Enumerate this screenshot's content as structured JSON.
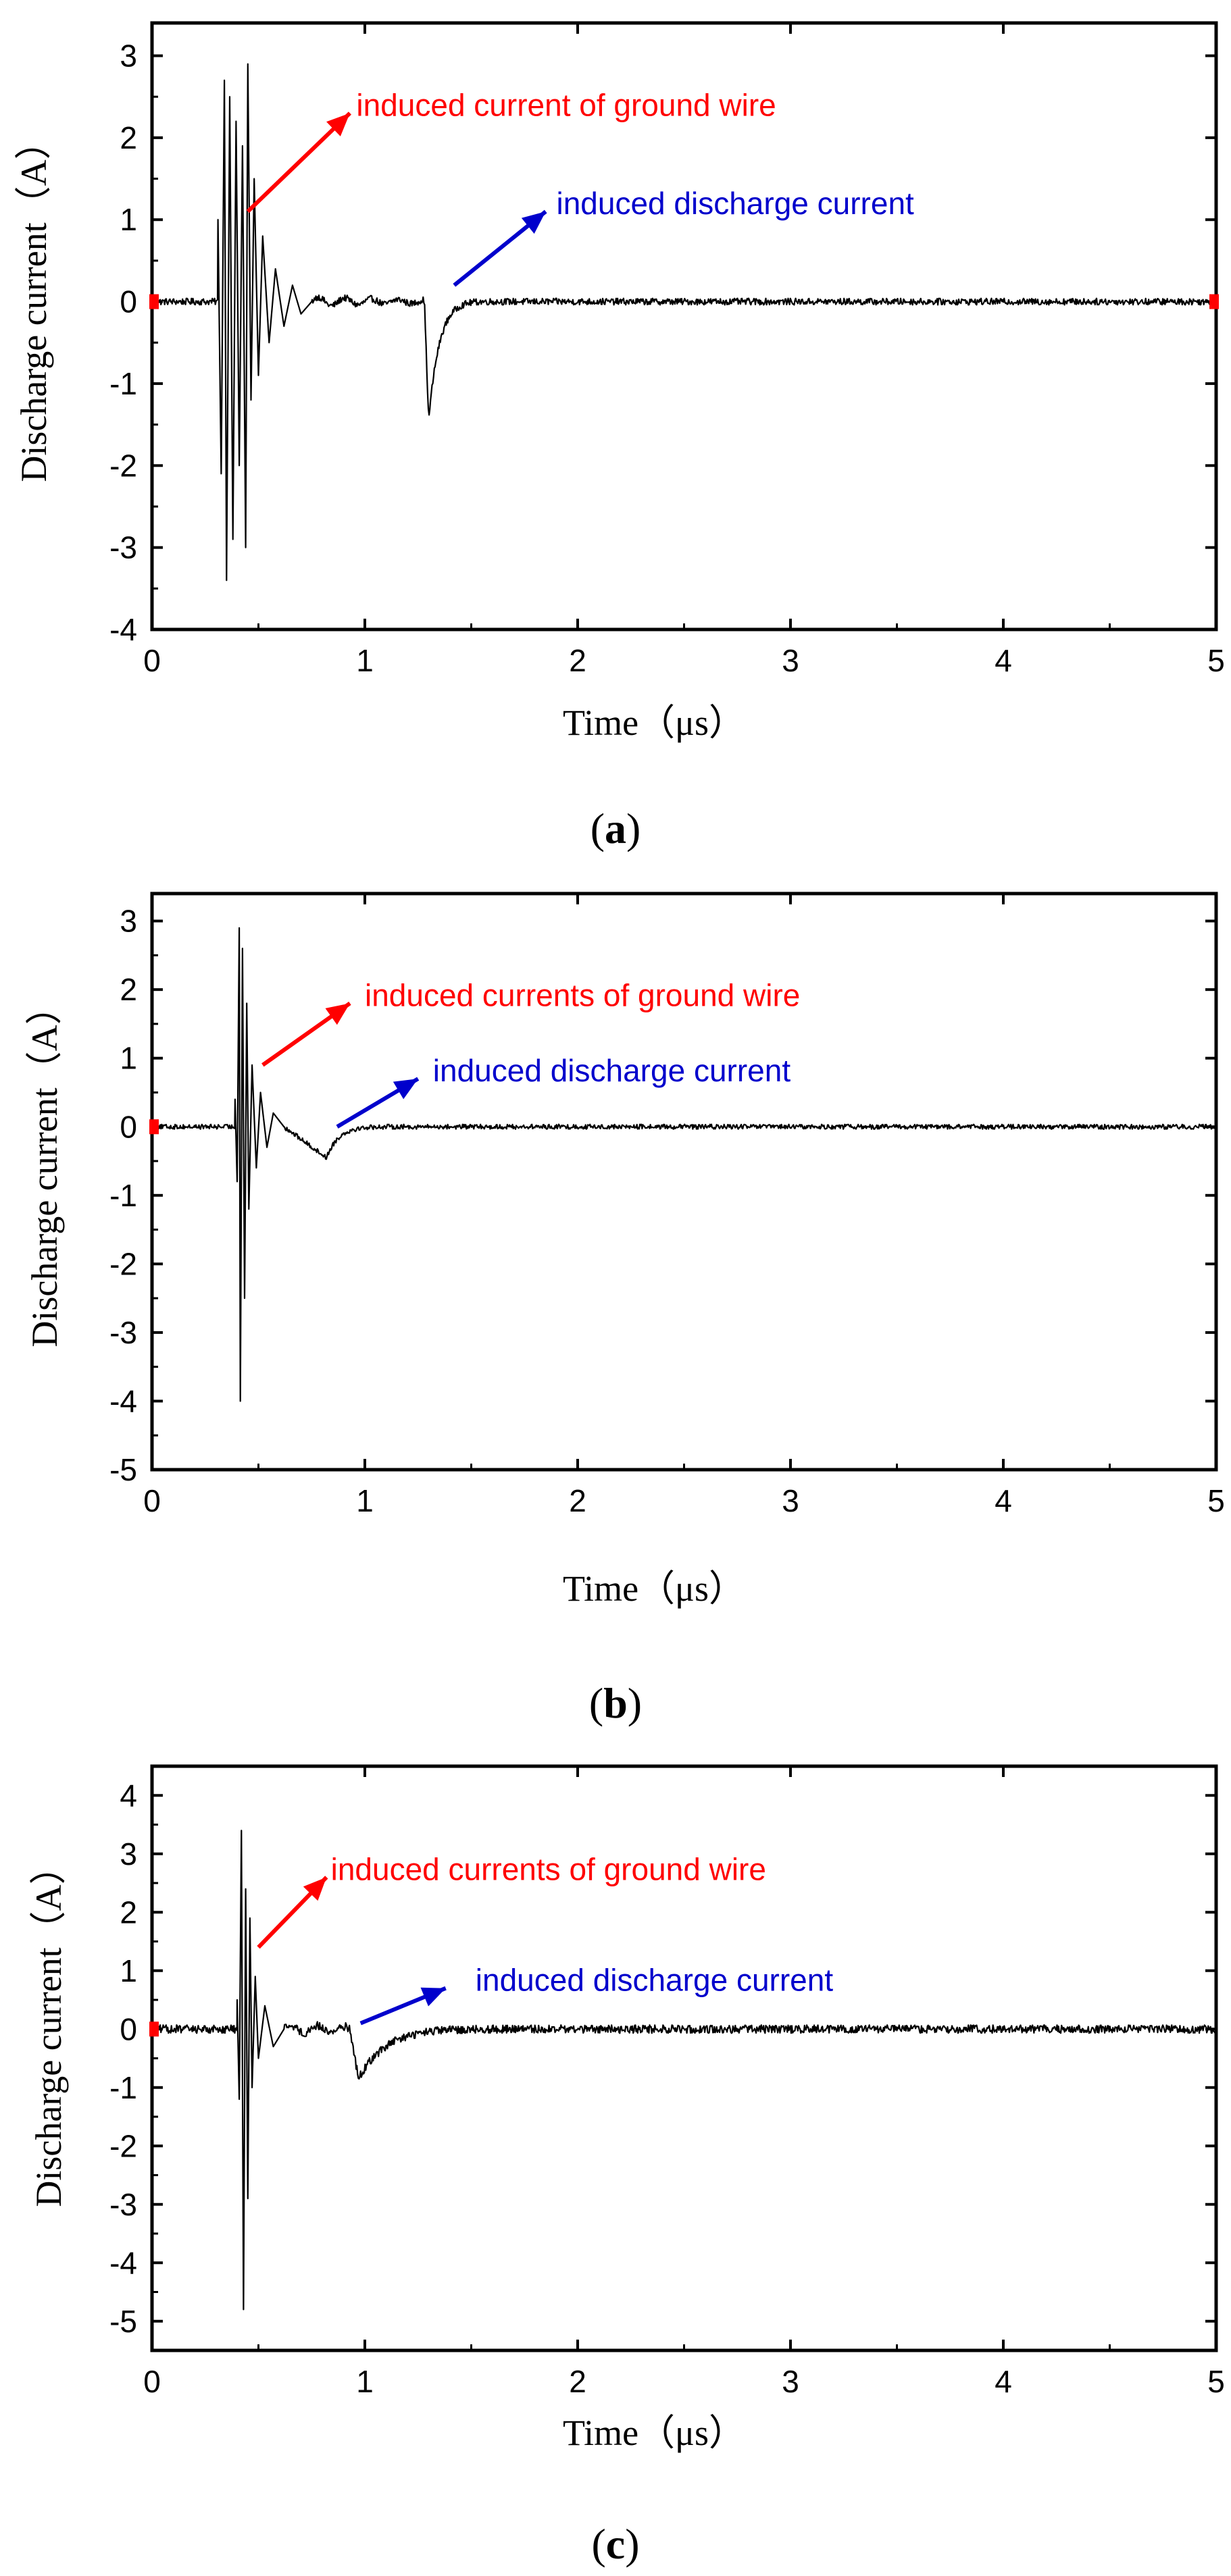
{
  "chart_data": [
    {
      "type": "line",
      "panel_label": "a",
      "title": "",
      "xlabel": "Time（μs）",
      "ylabel": "Discharge current（A）",
      "xlim": [
        0,
        5
      ],
      "ylim": [
        -4,
        3.4
      ],
      "xticks": [
        "0",
        "1",
        "2",
        "3",
        "4",
        "5"
      ],
      "yticks": [
        "-4",
        "-3",
        "-2",
        "-1",
        "0",
        "1",
        "2",
        "3"
      ],
      "grid": false,
      "legend": "none",
      "line_color": "#000000",
      "baseline_markers_color": "#ff0000",
      "annotations": [
        {
          "text": "induced current of ground wire",
          "color": "#ff0000",
          "arrow_from": [
            0.45,
            1.1
          ],
          "arrow_to": [
            0.93,
            2.3
          ],
          "text_at": [
            0.96,
            2.3
          ]
        },
        {
          "text": "induced discharge current",
          "color": "#0000cc",
          "arrow_from": [
            1.42,
            0.2
          ],
          "arrow_to": [
            1.85,
            1.1
          ],
          "text_at": [
            1.9,
            1.1
          ]
        }
      ],
      "series": [
        {
          "pulse": {
            "t0": 0.3,
            "t1": 0.75,
            "peaks": [
              [
                0.31,
                1.0
              ],
              [
                0.325,
                -2.1
              ],
              [
                0.34,
                2.7
              ],
              [
                0.35,
                -3.4
              ],
              [
                0.365,
                2.5
              ],
              [
                0.38,
                -2.9
              ],
              [
                0.395,
                2.2
              ],
              [
                0.41,
                -2.0
              ],
              [
                0.425,
                1.9
              ],
              [
                0.44,
                -3.0
              ],
              [
                0.45,
                2.9
              ],
              [
                0.465,
                -1.2
              ],
              [
                0.48,
                1.5
              ],
              [
                0.5,
                -0.9
              ],
              [
                0.52,
                0.8
              ],
              [
                0.55,
                -0.5
              ],
              [
                0.58,
                0.4
              ],
              [
                0.62,
                -0.3
              ],
              [
                0.66,
                0.2
              ],
              [
                0.7,
                -0.15
              ],
              [
                0.75,
                0.0
              ]
            ]
          },
          "dip": {
            "start": 1.28,
            "min_t": 1.3,
            "min": -1.45,
            "recover": 1.55
          },
          "tail_ripple": 0.06,
          "noise": 0.04
        }
      ]
    },
    {
      "type": "line",
      "panel_label": "b",
      "title": "",
      "xlabel": "Time（μs）",
      "ylabel": "Discharge current（A）",
      "xlim": [
        0,
        5
      ],
      "ylim": [
        -5,
        3.4
      ],
      "xticks": [
        "0",
        "1",
        "2",
        "3",
        "4",
        "5"
      ],
      "yticks": [
        "-5",
        "-4",
        "-3",
        "-2",
        "-1",
        "0",
        "1",
        "2",
        "3"
      ],
      "grid": false,
      "legend": "none",
      "line_color": "#000000",
      "baseline_markers_color": "#ff0000",
      "annotations": [
        {
          "text": "induced currents of ground wire",
          "color": "#ff0000",
          "arrow_from": [
            0.52,
            0.9
          ],
          "arrow_to": [
            0.93,
            1.8
          ],
          "text_at": [
            1.0,
            1.8
          ]
        },
        {
          "text": "induced discharge current",
          "color": "#0000cc",
          "arrow_from": [
            0.87,
            0.0
          ],
          "arrow_to": [
            1.25,
            0.7
          ],
          "text_at": [
            1.32,
            0.7
          ]
        }
      ],
      "series": [
        {
          "pulse": {
            "t0": 0.38,
            "t1": 0.62,
            "peaks": [
              [
                0.39,
                0.4
              ],
              [
                0.4,
                -0.8
              ],
              [
                0.41,
                2.9
              ],
              [
                0.415,
                -4.0
              ],
              [
                0.425,
                2.6
              ],
              [
                0.435,
                -2.5
              ],
              [
                0.445,
                1.8
              ],
              [
                0.455,
                -1.2
              ],
              [
                0.47,
                0.9
              ],
              [
                0.49,
                -0.6
              ],
              [
                0.51,
                0.5
              ],
              [
                0.54,
                -0.3
              ],
              [
                0.57,
                0.2
              ],
              [
                0.62,
                0.0
              ]
            ]
          },
          "dip": {
            "start": 0.62,
            "min_t": 0.82,
            "min": -0.45,
            "recover": 1.1
          },
          "tail_ripple": 0.1,
          "noise": 0.035
        }
      ]
    },
    {
      "type": "line",
      "panel_label": "c",
      "title": "",
      "xlabel": "Time（μs）",
      "ylabel": "Discharge current（A）",
      "xlim": [
        0,
        5
      ],
      "ylim": [
        -5.5,
        4.5
      ],
      "xticks": [
        "0",
        "1",
        "2",
        "3",
        "4",
        "5"
      ],
      "yticks": [
        "-5",
        "-4",
        "-3",
        "-2",
        "-1",
        "0",
        "1",
        "2",
        "3",
        "4"
      ],
      "grid": false,
      "legend": "none",
      "line_color": "#000000",
      "baseline_markers_color": "#ff0000",
      "annotations": [
        {
          "text": "induced currents of ground wire",
          "color": "#ff0000",
          "arrow_from": [
            0.5,
            1.4
          ],
          "arrow_to": [
            0.82,
            2.6
          ],
          "text_at": [
            0.84,
            2.6
          ]
        },
        {
          "text": "induced discharge current",
          "color": "#0000cc",
          "arrow_from": [
            0.98,
            0.1
          ],
          "arrow_to": [
            1.38,
            0.7
          ],
          "text_at": [
            1.52,
            0.7
          ]
        }
      ],
      "series": [
        {
          "pulse": {
            "t0": 0.39,
            "t1": 0.62,
            "peaks": [
              [
                0.4,
                0.5
              ],
              [
                0.41,
                -1.2
              ],
              [
                0.42,
                3.4
              ],
              [
                0.43,
                -4.8
              ],
              [
                0.44,
                2.4
              ],
              [
                0.45,
                -2.9
              ],
              [
                0.46,
                1.9
              ],
              [
                0.47,
                -1.0
              ],
              [
                0.485,
                0.9
              ],
              [
                0.5,
                -0.5
              ],
              [
                0.53,
                0.4
              ],
              [
                0.57,
                -0.3
              ],
              [
                0.62,
                0.0
              ]
            ]
          },
          "dip": {
            "start": 0.93,
            "min_t": 0.97,
            "min": -0.85,
            "recover": 1.6
          },
          "tail_ripple": 0.08,
          "noise": 0.07
        }
      ]
    }
  ]
}
